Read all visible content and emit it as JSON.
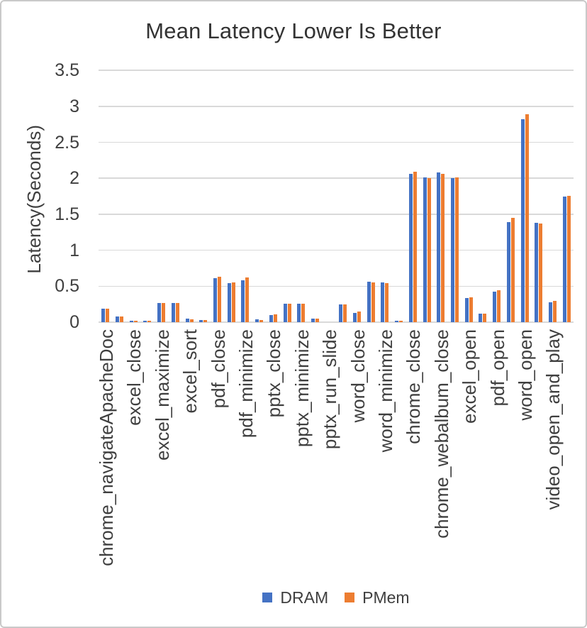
{
  "window": {
    "background_color": "#FFFFFF",
    "border_color": "#C9C9C9"
  },
  "chart_data": {
    "type": "bar",
    "title": "Mean Latency Lower Is Better",
    "xlabel": "",
    "ylabel": "Latency(Seconds)",
    "ylim": [
      0,
      3.5
    ],
    "yticks": [
      0,
      0.5,
      1,
      1.5,
      2,
      2.5,
      3,
      3.5
    ],
    "ytick_labels": [
      "0",
      "0.5",
      "1",
      "1.5",
      "2",
      "2.5",
      "3",
      "3.5"
    ],
    "grid": "horizontal",
    "gridline_color": "#D9D9D9",
    "axis_line_color": "#D9D9D9",
    "text_color": "#3F3F3F",
    "legend_position": "bottom",
    "category_label_interval": 2,
    "categories": [
      "chrome_navigateApacheDoc",
      "",
      "excel_close",
      "",
      "excel_maximize",
      "",
      "excel_sort",
      "",
      "pdf_close",
      "",
      "pdf_minimize",
      "",
      "pptx_close",
      "",
      "pptx_minimize",
      "",
      "pptx_run_slide",
      "",
      "word_close",
      "",
      "word_minimize",
      "",
      "chrome_close",
      "",
      "chrome_webalbum_close",
      "",
      "excel_open",
      "",
      "pdf_open",
      "",
      "word_open",
      "",
      "video_open_and_play",
      ""
    ],
    "series": [
      {
        "name": "DRAM",
        "color": "#4472C4",
        "values": [
          0.19,
          0.08,
          0.02,
          0.02,
          0.27,
          0.27,
          0.05,
          0.03,
          0.61,
          0.54,
          0.58,
          0.04,
          0.1,
          0.26,
          0.26,
          0.05,
          0.0,
          0.25,
          0.13,
          0.56,
          0.55,
          0.02,
          2.06,
          2.01,
          2.08,
          2.0,
          0.34,
          0.12,
          0.42,
          1.39,
          2.82,
          1.38,
          0.28,
          1.75
        ]
      },
      {
        "name": "PMem",
        "color": "#ED7D31",
        "values": [
          0.19,
          0.08,
          0.02,
          0.02,
          0.27,
          0.27,
          0.04,
          0.03,
          0.63,
          0.55,
          0.62,
          0.03,
          0.11,
          0.26,
          0.26,
          0.05,
          0.0,
          0.25,
          0.15,
          0.55,
          0.54,
          0.02,
          2.09,
          2.0,
          2.06,
          2.01,
          0.35,
          0.12,
          0.44,
          1.45,
          2.89,
          1.37,
          0.3,
          1.76
        ]
      }
    ]
  },
  "legend": {
    "items": [
      {
        "label": "DRAM",
        "color": "#4472C4"
      },
      {
        "label": "PMem",
        "color": "#ED7D31"
      }
    ]
  }
}
